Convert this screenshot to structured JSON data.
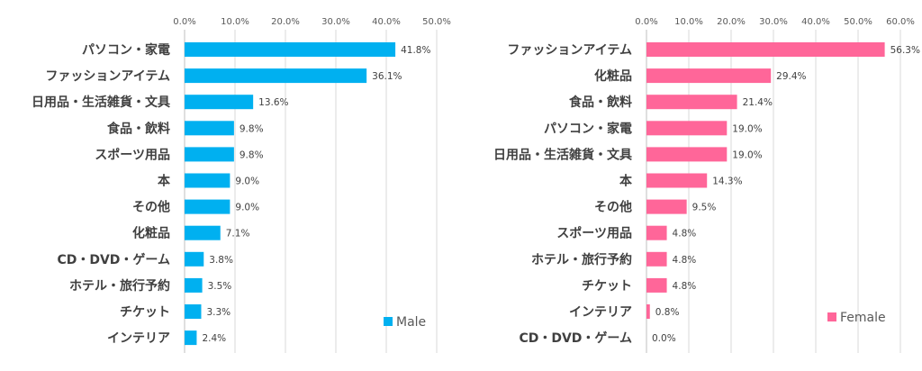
{
  "chart_data": [
    {
      "type": "bar",
      "orientation": "horizontal",
      "categories": [
        "パソコン・家電",
        "ファッションアイテム",
        "日用品・生活雑貨・文具",
        "食品・飲料",
        "スポーツ用品",
        "本",
        "その他",
        "化粧品",
        "CD・DVD・ゲーム",
        "ホテル・旅行予約",
        "チケット",
        "インテリア"
      ],
      "series": [
        {
          "name": "Male",
          "color": "#00b0f0",
          "values": [
            41.8,
            36.1,
            13.6,
            9.8,
            9.8,
            9.0,
            9.0,
            7.1,
            3.8,
            3.5,
            3.3,
            2.4
          ]
        }
      ],
      "labels": [
        "41.8%",
        "36.1%",
        "13.6%",
        "9.8%",
        "9.8%",
        "9.0%",
        "9.0%",
        "7.1%",
        "3.8%",
        "3.5%",
        "3.3%",
        "2.4%"
      ],
      "xlim": [
        0,
        50
      ],
      "xticks": [
        "0.0%",
        "10.0%",
        "20.0%",
        "30.0%",
        "40.0%",
        "50.0%"
      ],
      "axis_position": "top",
      "grid": true,
      "legend_position": "bottom-right"
    },
    {
      "type": "bar",
      "orientation": "horizontal",
      "categories": [
        "ファッションアイテム",
        "化粧品",
        "食品・飲料",
        "パソコン・家電",
        "日用品・生活雑貨・文具",
        "本",
        "その他",
        "スポーツ用品",
        "ホテル・旅行予約",
        "チケット",
        "インテリア",
        "CD・DVD・ゲーム"
      ],
      "series": [
        {
          "name": "Female",
          "color": "#ff6699",
          "values": [
            56.3,
            29.4,
            21.4,
            19.0,
            19.0,
            14.3,
            9.5,
            4.8,
            4.8,
            4.8,
            0.8,
            0.0
          ]
        }
      ],
      "labels": [
        "56.3%",
        "29.4%",
        "21.4%",
        "19.0%",
        "19.0%",
        "14.3%",
        "9.5%",
        "4.8%",
        "4.8%",
        "4.8%",
        "0.8%",
        "0.0%"
      ],
      "xlim": [
        0,
        60
      ],
      "xticks": [
        "0.0%",
        "10.0%",
        "20.0%",
        "30.0%",
        "40.0%",
        "50.0%",
        "60.0%"
      ],
      "axis_position": "top",
      "grid": true,
      "legend_position": "bottom-right"
    }
  ]
}
